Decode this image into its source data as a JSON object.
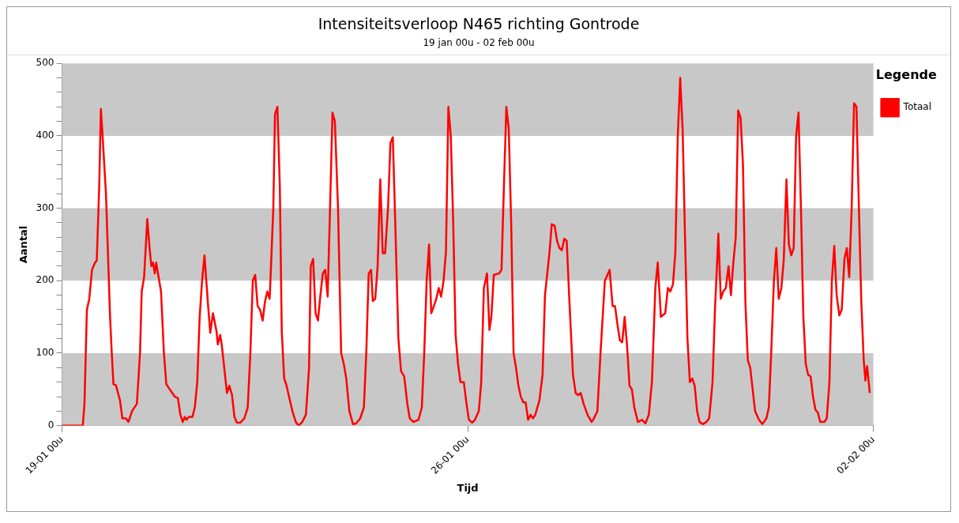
{
  "chart_data": {
    "type": "line",
    "title": "Intensiteitsverloop N465 richting Gontrode",
    "subtitle": "19 jan 00u - 02 feb 00u",
    "xlabel": "Tijd",
    "ylabel": "Aantal",
    "legend_title": "Legende",
    "legend": "top right",
    "marker": "none",
    "xlim": [
      "--01-19T00:00",
      "--02-02T00:00"
    ],
    "xticks": [
      {
        "value": "--01-19T00:00",
        "label": "19-01 00u"
      },
      {
        "value": "--01-26T00:00",
        "label": "26-01 00u"
      },
      {
        "value": "--02-02T00:00",
        "label": "02-02 00u"
      }
    ],
    "ylim": [
      0,
      500
    ],
    "yticks": [
      0,
      {
        "value": 20,
        "label": null
      },
      {
        "value": 40,
        "label": null
      },
      {
        "value": 60,
        "label": null
      },
      {
        "value": 80,
        "label": null
      },
      100,
      {
        "value": 120,
        "label": null
      },
      {
        "value": 140,
        "label": null
      },
      {
        "value": 160,
        "label": null
      },
      {
        "value": 180,
        "label": null
      },
      200,
      {
        "value": 220,
        "label": null
      },
      {
        "value": 240,
        "label": null
      },
      {
        "value": 260,
        "label": null
      },
      {
        "value": 280,
        "label": null
      },
      300,
      {
        "value": 320,
        "label": null
      },
      {
        "value": 340,
        "label": null
      },
      {
        "value": 360,
        "label": null
      },
      {
        "value": 380,
        "label": null
      },
      400,
      {
        "value": 420,
        "label": null
      },
      {
        "value": 440,
        "label": null
      },
      {
        "value": 460,
        "label": null
      },
      {
        "value": 480,
        "label": null
      },
      500
    ],
    "bands": [
      {
        "axis": "y",
        "from": 0,
        "to": 100,
        "color": "#c8c8c8"
      },
      {
        "axis": "y",
        "from": 200,
        "to": 300,
        "color": "#c8c8c8"
      },
      {
        "axis": "y",
        "from": 400,
        "to": 500,
        "color": "#c8c8c8"
      }
    ],
    "series": [
      {
        "name": "Totaal",
        "color": "#ff0000",
        "x": [
          "--01-19T00:00",
          "--01-19T08:36",
          "--01-19T09:18",
          "--01-19T10:18",
          "--01-19T11:18",
          "--01-19T12:24",
          "--01-19T13:42",
          "--01-19T14:24",
          "--01-19T15:24",
          "--01-19T16:06",
          "--01-19T16:48",
          "--01-19T18:12",
          "--01-19T19:54",
          "--01-19T20:36",
          "--01-19T21:18",
          "--01-19T22:18",
          "--01-20T00:00",
          "--01-20T01:00",
          "--01-20T02:24",
          "--01-20T03:30",
          "--01-20T05:00",
          "--01-20T07:00",
          "--01-20T08:18",
          "--01-20T09:00",
          "--01-20T10:00",
          "--01-20T11:18",
          "--01-20T12:24",
          "--01-20T13:00",
          "--01-20T13:42",
          "--01-20T14:24",
          "--01-20T15:00",
          "--01-20T16:00",
          "--01-20T17:00",
          "--01-20T18:12",
          "--01-20T19:12",
          "--01-20T20:36",
          "--01-20T22:42",
          "--01-21T00:00",
          "--01-21T01:00",
          "--01-21T02:00",
          "--01-21T02:48",
          "--01-21T03:30",
          "--01-21T04:30",
          "--01-21T06:00",
          "--01-21T07:00",
          "--01-21T08:00",
          "--01-21T09:00",
          "--01-21T10:00",
          "--01-21T11:00",
          "--01-21T12:24",
          "--01-21T13:24",
          "--01-21T14:30",
          "--01-21T16:00",
          "--01-21T16:30",
          "--01-21T17:30",
          "--01-21T18:12",
          "--01-21T20:18",
          "--01-21T21:18",
          "--01-21T22:24",
          "--01-21T23:24",
          "--01-22T00:24",
          "--01-22T01:48",
          "--01-22T03:30",
          "--01-22T04:54",
          "--01-22T06:00",
          "--01-22T07:00",
          "--01-22T08:00",
          "--01-22T09:00",
          "--01-22T10:00",
          "--01-22T11:06",
          "--01-22T12:00",
          "--01-22T13:00",
          "--01-22T14:00",
          "--01-22T15:30",
          "--01-22T16:12",
          "--01-22T17:12",
          "--01-22T18:12",
          "--01-22T19:00",
          "--01-22T20:00",
          "--01-22T21:00",
          "--01-22T22:00",
          "--01-22T23:24",
          "--01-23T00:48",
          "--01-23T02:00",
          "--01-23T03:30",
          "--01-23T05:00",
          "--01-23T06:18",
          "--01-23T07:00",
          "--01-23T08:00",
          "--01-23T09:00",
          "--01-23T10:00",
          "--01-23T11:00",
          "--01-23T12:00",
          "--01-23T13:00",
          "--01-23T14:00",
          "--01-23T15:00",
          "--01-23T16:00",
          "--01-23T17:00",
          "--01-23T18:18",
          "--01-23T19:36",
          "--01-23T20:42",
          "--01-23T21:42",
          "--01-23T23:00",
          "--01-24T00:30",
          "--01-24T01:48",
          "--01-24T03:30",
          "--01-24T05:00",
          "--01-24T06:00",
          "--01-24T07:00",
          "--01-24T08:00",
          "--01-24T08:42",
          "--01-24T09:42",
          "--01-24T10:42",
          "--01-24T11:48",
          "--01-24T12:48",
          "--01-24T13:48",
          "--01-24T15:00",
          "--01-24T16:00",
          "--01-24T17:00",
          "--01-24T18:00",
          "--01-24T19:18",
          "--01-24T20:24",
          "--01-24T21:42",
          "--01-24T23:00",
          "--01-25T00:00",
          "--01-25T01:30",
          "--01-25T03:36",
          "--01-25T05:00",
          "--01-25T06:00",
          "--01-25T07:00",
          "--01-25T08:00",
          "--01-25T08:54",
          "--01-25T10:00",
          "--01-25T11:00",
          "--01-25T12:00",
          "--01-25T13:00",
          "--01-25T14:00",
          "--01-25T15:00",
          "--01-25T16:00",
          "--01-25T17:00",
          "--01-25T18:00",
          "--01-25T19:00",
          "--01-25T20:00",
          "--01-25T21:00",
          "--01-25T22:24",
          "--01-25T23:30",
          "--01-26T00:30",
          "--01-26T01:54",
          "--01-26T03:00",
          "--01-26T04:36",
          "--01-26T05:36",
          "--01-26T06:42",
          "--01-26T08:00",
          "--01-26T09:00",
          "--01-26T09:48",
          "--01-26T10:48",
          "--01-26T13:00",
          "--01-26T14:00",
          "--01-26T15:00",
          "--01-26T16:00",
          "--01-26T17:00",
          "--01-26T18:00",
          "--01-26T19:00",
          "--01-26T20:00",
          "--01-26T21:00",
          "--01-26T22:00",
          "--01-26T23:00",
          "--01-27T00:00",
          "--01-27T01:00",
          "--01-27T02:00",
          "--01-27T03:00",
          "--01-27T04:00",
          "--01-27T05:42",
          "--01-27T07:00",
          "--01-27T08:00",
          "--01-27T09:54",
          "--01-27T10:48",
          "--01-27T12:00",
          "--01-27T13:00",
          "--01-27T14:00",
          "--01-27T15:00",
          "--01-27T16:00",
          "--01-27T17:00",
          "--01-27T18:00",
          "--01-27T19:36",
          "--01-27T20:42",
          "--01-27T21:48",
          "--01-27T22:48",
          "--01-28T00:00",
          "--01-28T01:36",
          "--01-28T03:18",
          "--01-28T04:00",
          "--01-28T05:42",
          "--01-28T07:00",
          "--01-28T08:48",
          "--01-28T10:48",
          "--01-28T12:00",
          "--01-28T13:00",
          "--01-28T14:00",
          "--01-28T15:00",
          "--01-28T16:00",
          "--01-28T17:00",
          "--01-28T18:00",
          "--01-28T19:00",
          "--01-28T20:00",
          "--01-28T21:00",
          "--01-28T22:30",
          "--01-29T00:12",
          "--01-29T01:36",
          "--01-29T03:00",
          "--01-29T04:18",
          "--01-29T05:42",
          "--01-29T06:42",
          "--01-29T08:00",
          "--01-29T09:48",
          "--01-29T10:54",
          "--01-29T11:54",
          "--01-29T13:00",
          "--01-29T14:00",
          "--01-29T15:00",
          "--01-29T16:00",
          "--01-29T17:00",
          "--01-29T18:00",
          "--01-29T19:00",
          "--01-29T20:00",
          "--01-29T21:00",
          "--01-29T22:00",
          "--01-29T23:00",
          "--01-30T00:00",
          "--01-30T01:24",
          "--01-30T02:48",
          "--01-30T04:00",
          "--01-30T05:24",
          "--01-30T06:24",
          "--01-30T07:48",
          "--01-30T08:48",
          "--01-30T09:48",
          "--01-30T10:54",
          "--01-30T12:00",
          "--01-30T13:00",
          "--01-30T14:00",
          "--01-30T15:00",
          "--01-30T16:00",
          "--01-30T17:00",
          "--01-30T18:00",
          "--01-30T19:00",
          "--01-30T20:00",
          "--01-30T21:00",
          "--01-30T22:00",
          "--01-30T23:00",
          "--01-31T00:36",
          "--01-31T02:00",
          "--01-31T03:42",
          "--01-31T04:42",
          "--01-31T05:48",
          "--01-31T06:48",
          "--01-31T07:48",
          "--01-31T08:48",
          "--01-31T09:54",
          "--01-31T10:54",
          "--01-31T12:00",
          "--01-31T13:00",
          "--01-31T14:00",
          "--01-31T15:00",
          "--01-31T16:00",
          "--01-31T17:00",
          "--01-31T18:00",
          "--01-31T19:00",
          "--01-31T20:00",
          "--01-31T21:00",
          "--01-31T22:00",
          "--01-31T23:00",
          "--02-01T00:00",
          "--02-01T01:00",
          "--02-01T02:00",
          "--02-01T03:42",
          "--02-01T04:42",
          "--02-01T05:48",
          "--02-01T06:48",
          "--02-01T07:48",
          "--02-01T08:48",
          "--02-01T09:54",
          "--02-01T10:54",
          "--02-01T12:00",
          "--02-01T13:00",
          "--02-01T14:00",
          "--02-01T15:00",
          "--02-01T16:00",
          "--02-01T17:00",
          "--02-01T18:00",
          "--02-01T19:00",
          "--02-01T20:00",
          "--02-01T20:42",
          "--02-01T21:24",
          "--02-01T22:30"
        ],
        "values": [
          0,
          0,
          30,
          160,
          175,
          215,
          225,
          228,
          330,
          437,
          400,
          320,
          150,
          100,
          57,
          56,
          35,
          10,
          10,
          5,
          20,
          30,
          100,
          185,
          205,
          285,
          240,
          220,
          225,
          210,
          225,
          205,
          185,
          100,
          57,
          50,
          40,
          38,
          15,
          5,
          12,
          8,
          12,
          12,
          25,
          60,
          150,
          200,
          235,
          170,
          128,
          155,
          130,
          112,
          125,
          110,
          45,
          55,
          42,
          12,
          4,
          4,
          10,
          25,
          100,
          200,
          208,
          165,
          160,
          145,
          170,
          185,
          175,
          300,
          430,
          440,
          330,
          130,
          65,
          55,
          40,
          20,
          5,
          0,
          5,
          15,
          80,
          220,
          230,
          155,
          145,
          180,
          210,
          215,
          178,
          300,
          432,
          420,
          300,
          100,
          85,
          65,
          20,
          2,
          3,
          10,
          25,
          100,
          210,
          215,
          172,
          175,
          220,
          340,
          238,
          238,
          300,
          390,
          398,
          280,
          120,
          75,
          68,
          30,
          10,
          5,
          8,
          25,
          100,
          200,
          250,
          155,
          165,
          175,
          190,
          178,
          200,
          240,
          440,
          400,
          280,
          125,
          85,
          60,
          60,
          30,
          8,
          4,
          8,
          20,
          60,
          190,
          210,
          132,
          150,
          208,
          210,
          215,
          330,
          440,
          410,
          280,
          100,
          80,
          55,
          40,
          32,
          32,
          8,
          15,
          10,
          15,
          35,
          70,
          180,
          240,
          278,
          276,
          255,
          245,
          242,
          258,
          255,
          180,
          70,
          45,
          42,
          45,
          30,
          15,
          5,
          8,
          20,
          100,
          200,
          215,
          165,
          165,
          140,
          118,
          115,
          150,
          110,
          55,
          50,
          25,
          5,
          8,
          3,
          15,
          60,
          190,
          225,
          150,
          155,
          190,
          185,
          195,
          240,
          400,
          480,
          410,
          260,
          120,
          60,
          65,
          55,
          20,
          5,
          2,
          5,
          10,
          60,
          160,
          265,
          175,
          185,
          190,
          220,
          180,
          225,
          260,
          435,
          425,
          360,
          170,
          90,
          80,
          50,
          20,
          8,
          2,
          10,
          25,
          110,
          200,
          245,
          175,
          190,
          230,
          340,
          250,
          235,
          245,
          400,
          432,
          300,
          150,
          85,
          70,
          68,
          40,
          22,
          18,
          5,
          5,
          10,
          60,
          200,
          248,
          180,
          152,
          160,
          230,
          245,
          205,
          300,
          445,
          440,
          300,
          170,
          90,
          62,
          82,
          45
        ]
      }
    ]
  }
}
